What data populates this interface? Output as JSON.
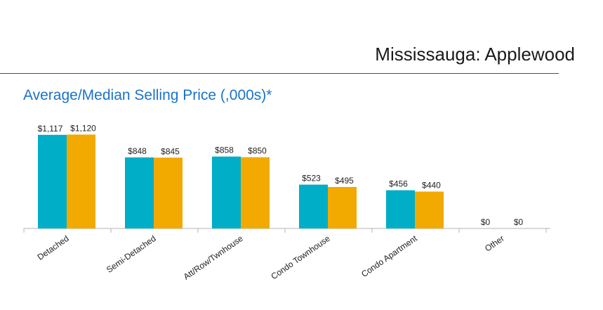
{
  "page": {
    "header_title": "Mississauga: Applewood"
  },
  "colors": {
    "series_1": "#00aec7",
    "series_2": "#f2a900",
    "title": "#1a73c9"
  },
  "chart_data": {
    "type": "bar",
    "title": "Average/Median Selling Price (,000s)*",
    "xlabel": "",
    "ylabel": "",
    "categories": [
      "Detached",
      "Semi-Detached",
      "Att/Row/Twnhouse",
      "Condo Townhouse",
      "Condo Apartment",
      "Other"
    ],
    "series": [
      {
        "values": [
          1117,
          848,
          858,
          523,
          456,
          0
        ],
        "labels": [
          "$1,117",
          "$848",
          "$858",
          "$523",
          "$456",
          "$0"
        ]
      },
      {
        "values": [
          1120,
          845,
          850,
          495,
          440,
          0
        ],
        "labels": [
          "$1,120",
          "$845",
          "$850",
          "$495",
          "$440",
          "$0"
        ]
      }
    ],
    "ylim": [
      0,
      1300
    ],
    "grid": false,
    "legend": "none"
  }
}
